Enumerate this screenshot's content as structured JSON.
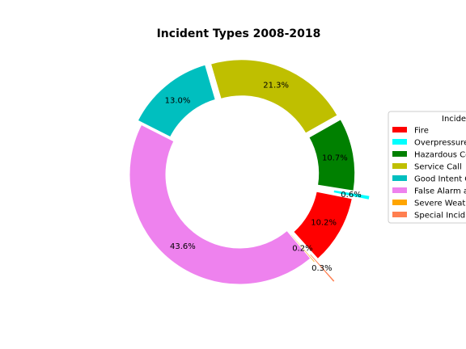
{
  "chart_data": {
    "type": "pie",
    "title": "Incident Types 2008-2018",
    "legend_title": "Incide",
    "legend_placement": "right",
    "start_angle_deg": 312,
    "direction": "counterclockwise",
    "donut": true,
    "slices": [
      {
        "label": "Fire",
        "value": 10.2,
        "pct_label": "10.2%",
        "color": "#ff0000",
        "explode": 0.05
      },
      {
        "label": "Overpressure",
        "value": 0.6,
        "pct_label": "0.6%",
        "color": "#00ffff",
        "explode": 0.2
      },
      {
        "label": "Hazardous Co",
        "value": 10.7,
        "pct_label": "10.7%",
        "color": "#008000",
        "explode": 0.05
      },
      {
        "label": "Service Call",
        "value": 21.3,
        "pct_label": "21.3%",
        "color": "#bfbf00",
        "explode": 0.05
      },
      {
        "label": "Good Intent C",
        "value": 13.0,
        "pct_label": "13.0%",
        "color": "#00bfbf",
        "explode": 0.05
      },
      {
        "label": "False Alarm a",
        "value": 43.6,
        "pct_label": "43.6%",
        "color": "#ee82ee",
        "explode": 0.0
      },
      {
        "label": "Severe Weat",
        "value": 0.2,
        "pct_label": "0.2%",
        "color": "#ffa500",
        "explode": 0.05
      },
      {
        "label": "Special Incid",
        "value": 0.3,
        "pct_label": "0.3%",
        "color": "#ff7f50",
        "explode": 0.3
      }
    ]
  }
}
